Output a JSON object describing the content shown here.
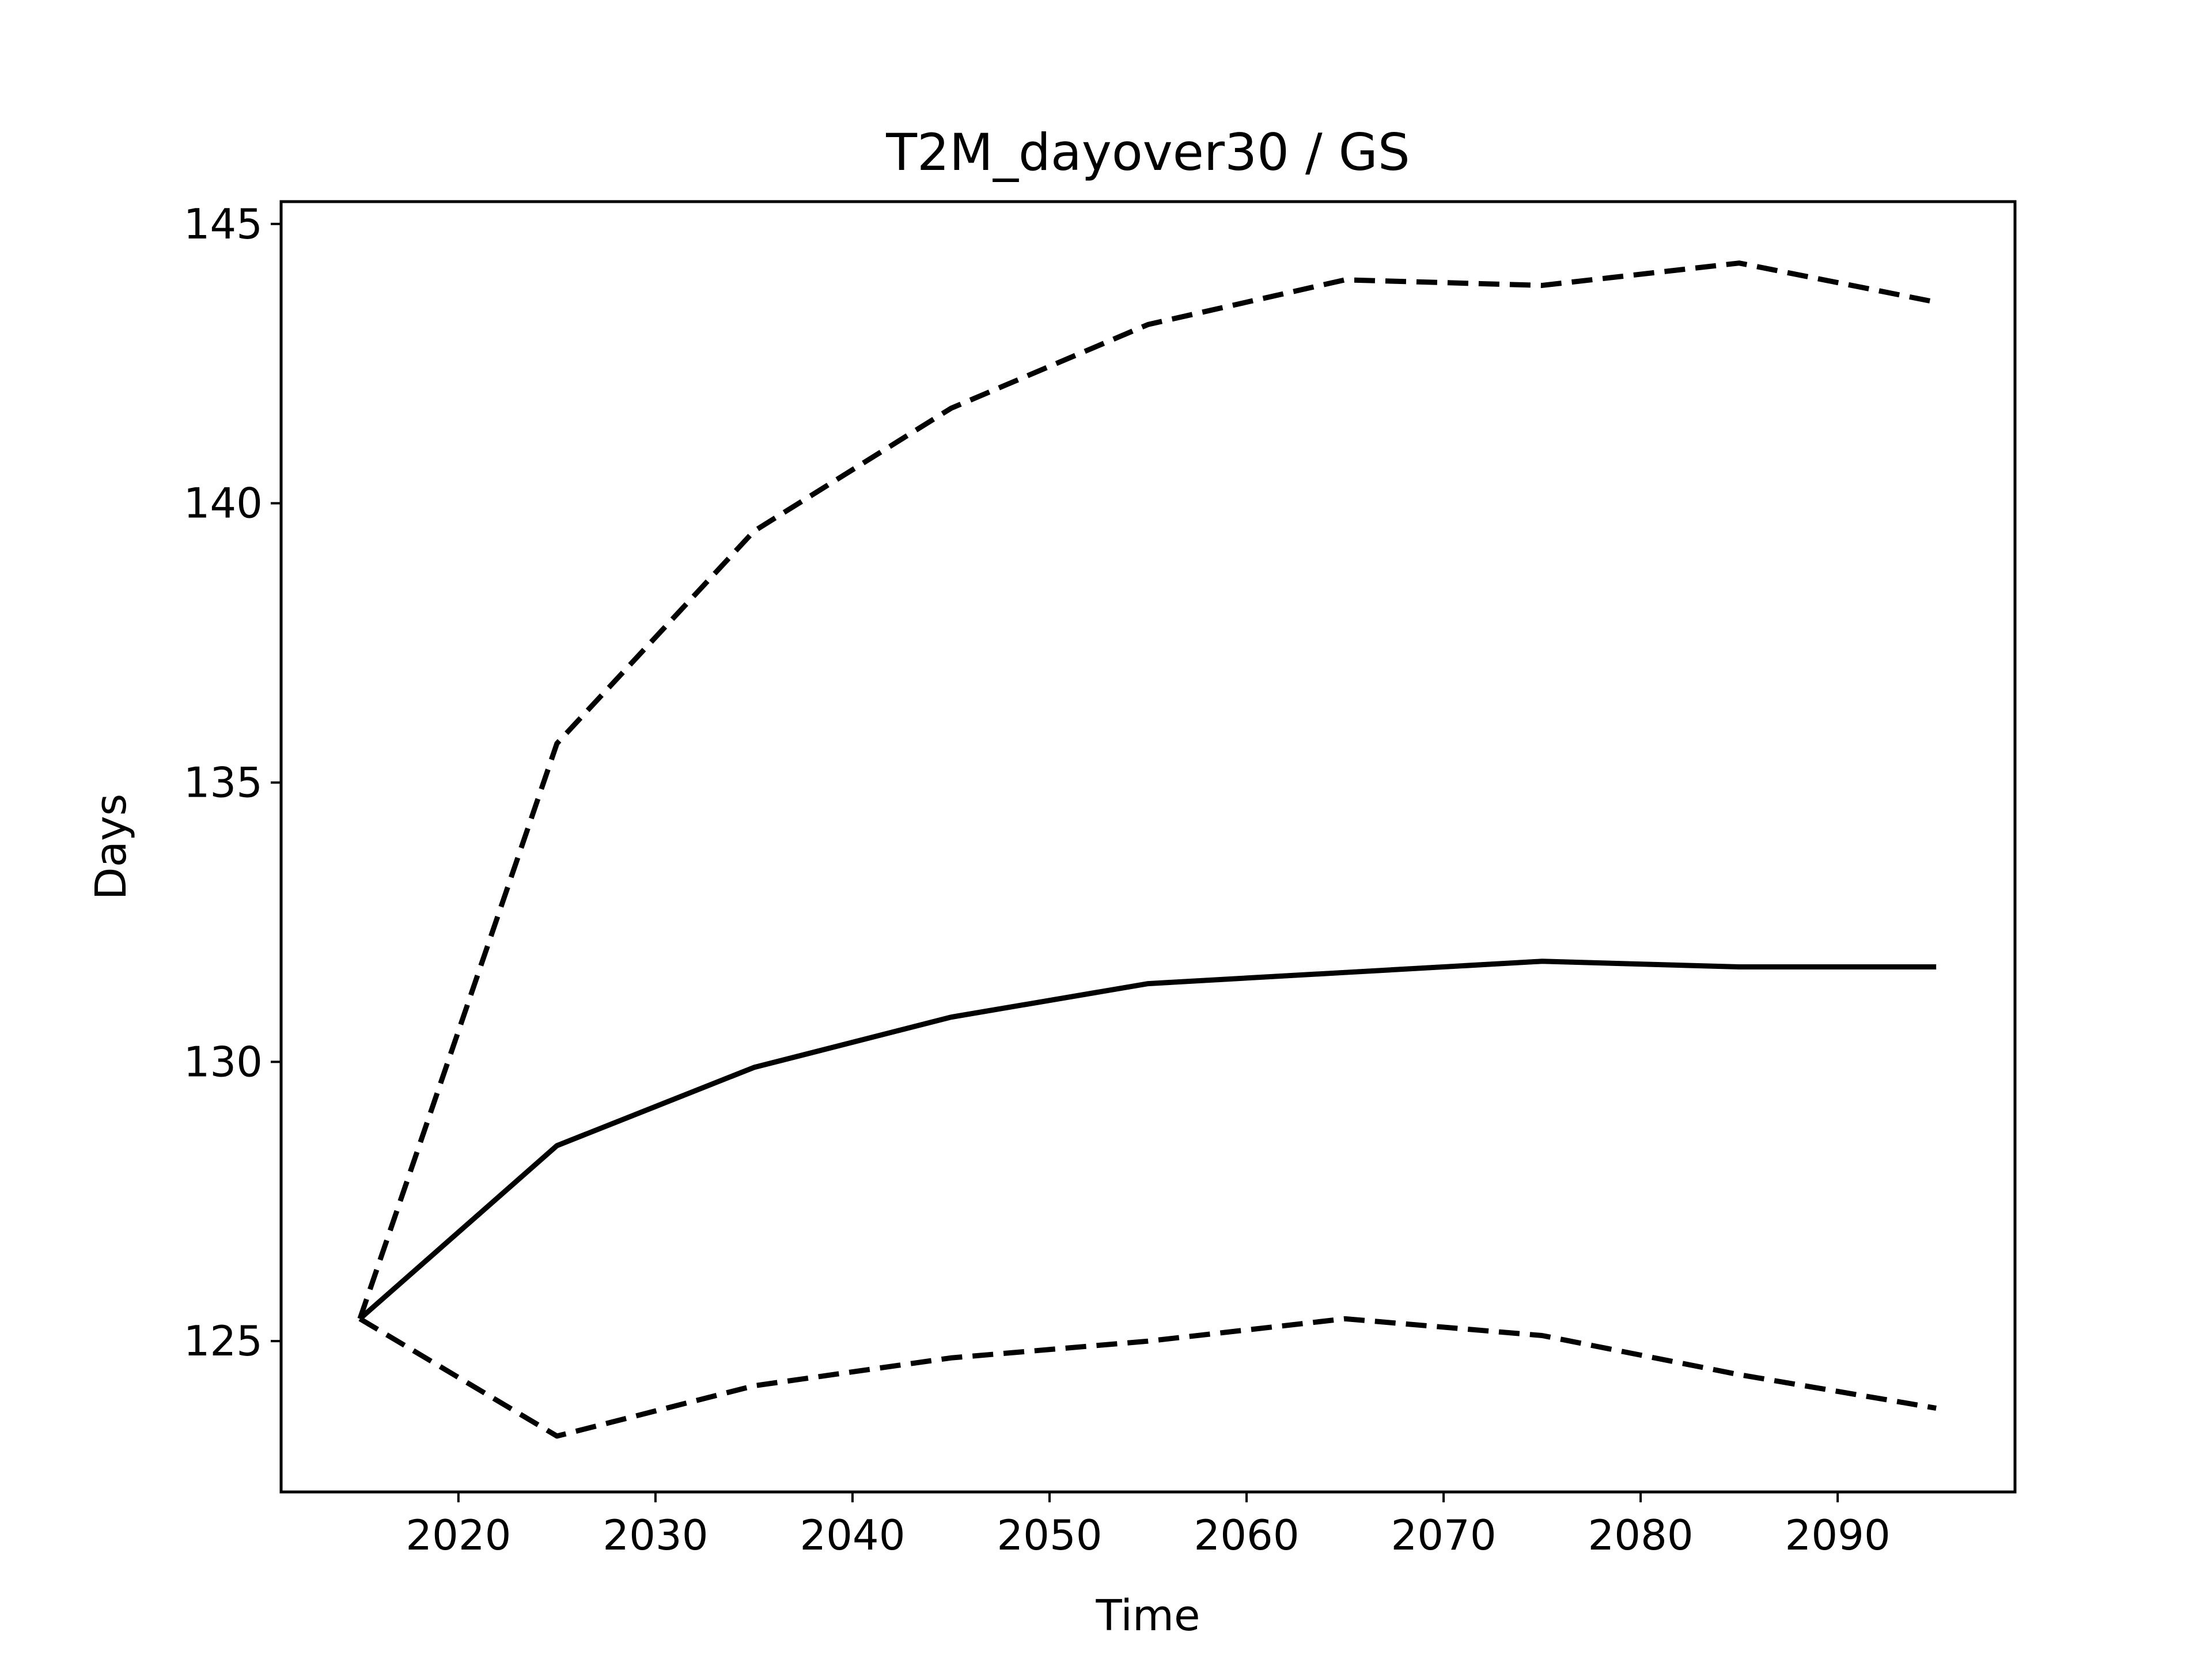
{
  "chart_data": {
    "type": "line",
    "title": "T2M_dayover30 / GS",
    "xlabel": "Time",
    "ylabel": "Days",
    "x": [
      2015,
      2025,
      2035,
      2045,
      2055,
      2065,
      2075,
      2085,
      2095
    ],
    "xlim": [
      2011,
      2099
    ],
    "ylim": [
      122.3,
      145.4
    ],
    "xticks": [
      2020,
      2030,
      2040,
      2050,
      2060,
      2070,
      2080,
      2090
    ],
    "yticks": [
      125,
      130,
      135,
      140,
      145
    ],
    "grid": false,
    "series": [
      {
        "style": "solid",
        "color": "#000000",
        "values": [
          125.4,
          128.5,
          129.9,
          130.8,
          131.4,
          131.6,
          131.8,
          131.7,
          131.7
        ]
      },
      {
        "style": "dashed",
        "color": "#000000",
        "values": [
          125.4,
          135.7,
          139.5,
          141.7,
          143.2,
          144.0,
          143.9,
          144.3,
          143.6
        ]
      },
      {
        "style": "dashed",
        "color": "#000000",
        "values": [
          125.4,
          123.3,
          124.2,
          124.7,
          125.0,
          125.4,
          125.1,
          124.4,
          123.8
        ]
      }
    ]
  }
}
